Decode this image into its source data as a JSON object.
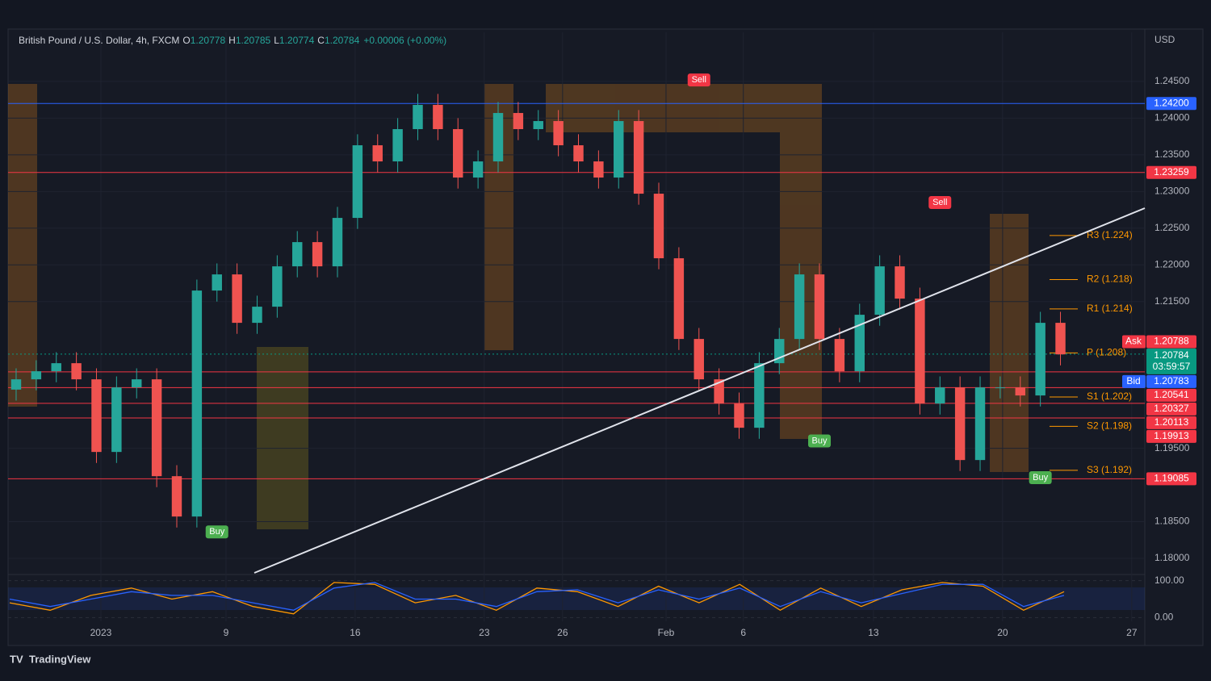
{
  "header": {
    "symbol": "British Pound / U.S. Dollar, 4h, FXCM",
    "ohlc": [
      {
        "key": "O",
        "value": "1.20778"
      },
      {
        "key": "H",
        "value": "1.20785"
      },
      {
        "key": "L",
        "value": "1.20774"
      },
      {
        "key": "C",
        "value": "1.20784"
      }
    ],
    "change": "+0.00006 (+0.00%)",
    "currency": "USD"
  },
  "footer": "TradingView",
  "chart_data": [
    {
      "type": "candlestick",
      "open": [
        1.203,
        1.2044,
        1.2055,
        1.2066,
        1.2044,
        1.1945,
        1.2033,
        1.2044,
        1.1912,
        1.1857,
        1.2165,
        1.2187,
        1.2121,
        1.2143,
        1.2198,
        1.2231,
        1.2198,
        1.2264,
        1.2363,
        1.2341,
        1.2385,
        1.2418,
        1.2385,
        1.2319,
        1.2341,
        1.2407,
        1.2385,
        1.2396,
        1.2363,
        1.2341,
        1.2319,
        1.2396,
        1.2297,
        1.2209,
        1.2099,
        1.2044,
        1.2011,
        1.1978,
        1.2066,
        1.2099,
        1.2187,
        1.2099,
        1.2055,
        1.2132,
        1.2198,
        1.2154,
        1.2011,
        1.2033,
        1.1934,
        1.2033,
        1.2033,
        1.2022,
        1.2121
      ],
      "high": [
        1.2059,
        1.207,
        1.2081,
        1.2081,
        1.2059,
        1.2048,
        1.2059,
        1.2059,
        1.1927,
        1.218,
        1.2202,
        1.2202,
        1.2158,
        1.2213,
        1.2246,
        1.2246,
        1.2279,
        1.2378,
        1.2378,
        1.24,
        1.2433,
        1.2433,
        1.24,
        1.2356,
        1.2422,
        1.2422,
        1.2411,
        1.2411,
        1.2378,
        1.2356,
        1.2411,
        1.2411,
        1.2312,
        1.2224,
        1.2114,
        1.2059,
        1.2026,
        1.2081,
        1.2114,
        1.2202,
        1.2202,
        1.2114,
        1.2147,
        1.2213,
        1.2213,
        1.2169,
        1.2048,
        1.2048,
        1.2048,
        1.2048,
        1.2048,
        1.2136,
        1.2136
      ],
      "low": [
        1.2015,
        1.2029,
        1.204,
        1.2029,
        1.193,
        1.193,
        1.2018,
        1.1897,
        1.1842,
        1.1842,
        1.215,
        1.2106,
        1.2106,
        1.2128,
        1.2183,
        1.2183,
        1.2183,
        1.2249,
        1.2326,
        1.2326,
        1.237,
        1.237,
        1.2304,
        1.2304,
        1.2326,
        1.237,
        1.237,
        1.2348,
        1.2326,
        1.2304,
        1.2304,
        1.2282,
        1.2194,
        1.2084,
        1.2029,
        1.1996,
        1.1963,
        1.1963,
        1.2051,
        1.2084,
        1.2084,
        1.204,
        1.204,
        1.2117,
        1.2139,
        1.1996,
        1.1996,
        1.1919,
        1.1919,
        1.2018,
        1.2007,
        1.2007,
        1.2063
      ],
      "close": [
        1.2044,
        1.2055,
        1.2066,
        1.2044,
        1.1945,
        1.2033,
        1.2044,
        1.1912,
        1.1857,
        1.2165,
        1.2187,
        1.2121,
        1.2143,
        1.2198,
        1.2231,
        1.2198,
        1.2264,
        1.2363,
        1.2341,
        1.2385,
        1.2418,
        1.2385,
        1.2319,
        1.2341,
        1.2407,
        1.2385,
        1.2396,
        1.2363,
        1.2341,
        1.2319,
        1.2396,
        1.2297,
        1.2209,
        1.2099,
        1.2044,
        1.2011,
        1.1978,
        1.2066,
        1.2099,
        1.2187,
        1.2099,
        1.2055,
        1.2132,
        1.2198,
        1.2154,
        1.2011,
        1.2033,
        1.1934,
        1.2033,
        1.2033,
        1.2022,
        1.2121,
        1.2078
      ],
      "up_color": "#26a69a",
      "down_color": "#ef5350",
      "xlim": [
        -0.2,
        56.2
      ],
      "xticks": [
        {
          "value": 4.22,
          "label": "2023"
        },
        {
          "value": 10.45,
          "label": "9"
        },
        {
          "value": 16.88,
          "label": "16"
        },
        {
          "value": 23.31,
          "label": "23"
        },
        {
          "value": 27.21,
          "label": "26"
        },
        {
          "value": 32.36,
          "label": "Feb"
        },
        {
          "value": 36.21,
          "label": "6"
        },
        {
          "value": 42.69,
          "label": "13"
        },
        {
          "value": 49.12,
          "label": "20"
        },
        {
          "value": 55.55,
          "label": "27"
        }
      ],
      "ylim": [
        1.1778,
        1.2517
      ],
      "yticks": [
        {
          "value": 1.245,
          "label": "1.24500"
        },
        {
          "value": 1.24,
          "label": "1.24000"
        },
        {
          "value": 1.235,
          "label": "1.23500"
        },
        {
          "value": 1.23,
          "label": "1.23000"
        },
        {
          "value": 1.225,
          "label": "1.22500"
        },
        {
          "value": 1.22,
          "label": "1.22000"
        },
        {
          "value": 1.215,
          "label": "1.21500"
        },
        {
          "value": 1.195,
          "label": "1.19500"
        },
        {
          "value": 1.185,
          "label": "1.18500"
        },
        {
          "value": 1.18,
          "label": "1.18000"
        }
      ],
      "grid": true,
      "price_tags": [
        {
          "value": 1.242,
          "label": "1.24200",
          "color": "#2962ff"
        },
        {
          "value": 1.23259,
          "label": "1.23259",
          "color": "#f23645"
        },
        {
          "value": 1.20541,
          "label": "1.20541",
          "color": "#f23645"
        },
        {
          "value": 1.20327,
          "label": "1.20327",
          "color": "#f23645"
        },
        {
          "value": 1.20113,
          "label": "1.20113",
          "color": "#f23645"
        },
        {
          "value": 1.19913,
          "label": "1.19913",
          "color": "#f23645"
        },
        {
          "value": 1.19085,
          "label": "1.19085",
          "color": "#f23645"
        }
      ],
      "ask": {
        "name": "Ask",
        "value": 1.20788,
        "label": "1.20788",
        "color": "#f23645"
      },
      "last": {
        "value": 1.20784,
        "label": "1.20784",
        "countdown": "03:59:57",
        "color": "#089981"
      },
      "bid": {
        "name": "Bid",
        "value": 1.20783,
        "label": "1.20783",
        "color": "#2962ff"
      },
      "pivots": [
        {
          "label": "R3 (1.224)",
          "value": 1.224
        },
        {
          "label": "R2 (1.218)",
          "value": 1.218
        },
        {
          "label": "R1 (1.214)",
          "value": 1.214
        },
        {
          "label": "P (1.208)",
          "value": 1.208
        },
        {
          "label": "S1 (1.202)",
          "value": 1.202
        },
        {
          "label": "S2 (1.198)",
          "value": 1.198
        },
        {
          "label": "S3 (1.192)",
          "value": 1.192
        }
      ],
      "pivot_color": "#ff9800",
      "signals": [
        {
          "label": "Sell",
          "index": 34,
          "price": 1.2452,
          "color": "#f23645"
        },
        {
          "label": "Sell",
          "index": 46,
          "price": 1.2285,
          "color": "#f23645"
        },
        {
          "label": "Buy",
          "index": 10,
          "price": 1.1836,
          "color": "#4caf50"
        },
        {
          "label": "Buy",
          "index": 40,
          "price": 1.196,
          "color": "#4caf50"
        },
        {
          "label": "Buy",
          "index": 51,
          "price": 1.191,
          "color": "#4caf50"
        }
      ]
    },
    {
      "type": "line",
      "ylim": [
        -10,
        110
      ],
      "yticks": [
        {
          "value": 100,
          "label": "100.00"
        },
        {
          "value": 0,
          "label": "0.00"
        }
      ],
      "series": [
        {
          "color": "#ff9800",
          "values": [
            40,
            20,
            60,
            80,
            50,
            70,
            30,
            10,
            95,
            90,
            40,
            60,
            20,
            80,
            70,
            30,
            85,
            40,
            90,
            20,
            80,
            30,
            75,
            95,
            85,
            20,
            70
          ]
        },
        {
          "color": "#2962ff",
          "values": [
            50,
            30,
            50,
            70,
            60,
            60,
            40,
            20,
            80,
            95,
            50,
            50,
            30,
            70,
            75,
            40,
            75,
            50,
            80,
            30,
            70,
            40,
            65,
            90,
            90,
            30,
            60
          ]
        }
      ]
    }
  ]
}
